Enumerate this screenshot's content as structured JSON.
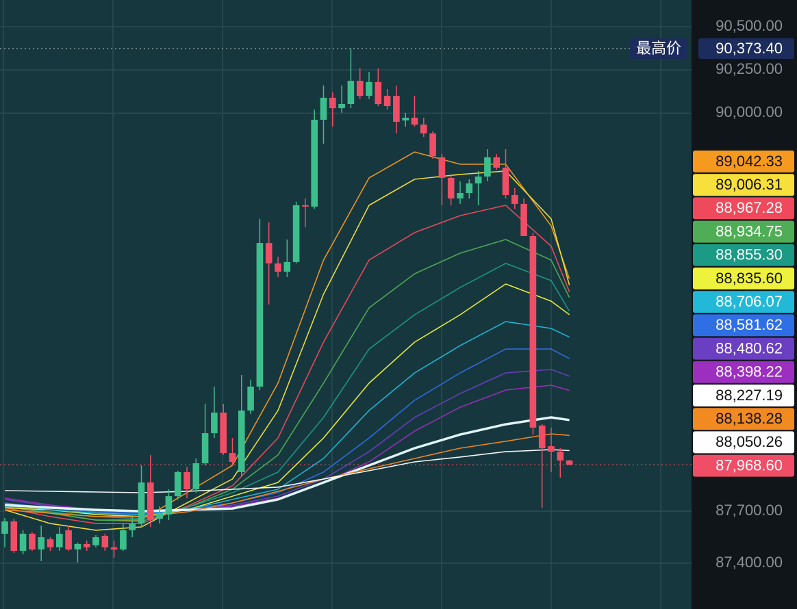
{
  "chart_data": {
    "type": "candlestick",
    "ylim": [
      87135,
      90654
    ],
    "yticks": [
      {
        "value": 90500,
        "label": "90,500.00"
      },
      {
        "value": 90250,
        "label": "90,250.00"
      },
      {
        "value": 90000,
        "label": "90,000.00"
      },
      {
        "value": 87700,
        "label": "87,700.00"
      },
      {
        "value": 87400,
        "label": "87,400.00"
      }
    ],
    "grid": true,
    "up_color": "#3cbf8c",
    "down_color": "#ef4e66",
    "candles": {
      "open": [
        87570,
        87641,
        87471,
        87570,
        87479,
        87538,
        87491,
        87590,
        87479,
        87511,
        87503,
        87558,
        87491,
        87479,
        87590,
        87629,
        87866,
        87657,
        87681,
        87787,
        87926,
        87827,
        87977,
        88151,
        88270,
        88036,
        87926,
        88282,
        88420,
        89250,
        89132,
        89084,
        89140,
        89468,
        89460,
        89962,
        90089,
        90029,
        90053,
        90187,
        90100,
        90180,
        90100,
        90100,
        89958,
        89974,
        89934,
        89883,
        89745,
        89626,
        89507,
        89539,
        89594,
        89634,
        89745,
        89685,
        89527,
        89476,
        89290,
        88195,
        88076,
        88044,
        87993
      ],
      "high": [
        87661,
        87657,
        87590,
        87578,
        87617,
        87550,
        87609,
        87617,
        87518,
        87530,
        87562,
        87570,
        87530,
        87629,
        87669,
        87965,
        88025,
        87728,
        87827,
        87934,
        87957,
        88005,
        88321,
        88420,
        88321,
        88123,
        88487,
        88460,
        89389,
        89369,
        89171,
        89270,
        89488,
        89507,
        90021,
        90160,
        90120,
        90160,
        90373.4,
        90259,
        90239,
        90259,
        90140,
        90160,
        90002,
        90100,
        89974,
        89895,
        89764,
        89646,
        89606,
        89618,
        89666,
        89792,
        89764,
        89792,
        89567,
        89507,
        89310,
        88203,
        88183,
        88064,
        87997
      ],
      "low": [
        87491,
        87459,
        87451,
        87471,
        87412,
        87471,
        87471,
        87471,
        87404,
        87471,
        87491,
        87471,
        87431,
        87471,
        87550,
        87609,
        87609,
        87629,
        87649,
        87768,
        87775,
        87807,
        87965,
        88123,
        88025,
        87973,
        87906,
        88262,
        88400,
        88894,
        89053,
        89053,
        89132,
        89341,
        89448,
        89824,
        89923,
        90002,
        90029,
        90081,
        90081,
        90041,
        90021,
        89883,
        89923,
        89923,
        89863,
        89737,
        89468,
        89468,
        89476,
        89507,
        89468,
        89606,
        89673,
        89507,
        89448,
        89290,
        88143,
        87720,
        87926,
        87894,
        87965
      ],
      "close": [
        87641,
        87471,
        87570,
        87479,
        87550,
        87491,
        87570,
        87479,
        87511,
        87491,
        87550,
        87491,
        87479,
        87590,
        87629,
        87866,
        87649,
        87689,
        87787,
        87926,
        87827,
        87977,
        88151,
        88270,
        88036,
        87985,
        88282,
        88420,
        89250,
        89132,
        89084,
        89140,
        89468,
        89460,
        89962,
        90089,
        90029,
        90053,
        90187,
        90100,
        90180,
        90053,
        90041,
        89950,
        89974,
        89934,
        89883,
        89752,
        89626,
        89507,
        89539,
        89594,
        89634,
        89745,
        89685,
        89527,
        89476,
        89290,
        88183,
        88064,
        88044,
        87993,
        87968.6
      ],
      "last_label": "87,968.60",
      "high_title": "最高价",
      "high_label": "90,373.40"
    },
    "ma_x": [
      0,
      5,
      10,
      15,
      20,
      25,
      30,
      35,
      40,
      45,
      50,
      55,
      60,
      62
    ],
    "series": [
      {
        "color": "#f59a1f",
        "values": [
          87728,
          87689,
          87649,
          87649,
          87807,
          87965,
          88440,
          89151,
          89626,
          89776,
          89705,
          89705,
          89349,
          89042.33
        ],
        "value_labels": [
          null,
          null,
          null,
          null,
          null,
          null,
          null,
          null,
          null,
          null,
          null,
          null,
          null,
          "89,042.33"
        ]
      },
      {
        "color": "#f7e03c",
        "values": [
          87708,
          87629,
          87590,
          87609,
          87748,
          87886,
          88282,
          88954,
          89468,
          89618,
          89646,
          89666,
          89389,
          89006.31
        ],
        "value_labels": [
          null,
          null,
          null,
          null,
          null,
          null,
          null,
          null,
          null,
          null,
          null,
          null,
          null,
          "89,006.31"
        ]
      },
      {
        "color": "#ef4a5c",
        "values": [
          87720,
          87669,
          87629,
          87629,
          87728,
          87847,
          88123,
          88677,
          89151,
          89310,
          89408,
          89468,
          89231,
          88967.28
        ],
        "value_labels": [
          null,
          null,
          null,
          null,
          null,
          null,
          null,
          null,
          null,
          null,
          null,
          null,
          null,
          "88,967.28"
        ]
      },
      {
        "color": "#4fae55",
        "values": [
          87736,
          87689,
          87649,
          87641,
          87720,
          87827,
          88025,
          88440,
          88875,
          89072,
          89191,
          89270,
          89151,
          88934.75
        ],
        "value_labels": [
          null,
          null,
          null,
          null,
          null,
          null,
          null,
          null,
          null,
          null,
          null,
          null,
          null,
          "88,934.75"
        ]
      },
      {
        "color": "#1b9a86",
        "values": [
          87728,
          87696,
          87669,
          87657,
          87720,
          87807,
          87926,
          88242,
          88637,
          88835,
          88993,
          89132,
          89033,
          88855.3
        ],
        "value_labels": [
          null,
          null,
          null,
          null,
          null,
          null,
          null,
          null,
          null,
          null,
          null,
          null,
          null,
          "88,855.30"
        ]
      },
      {
        "color": "#eef23c",
        "values": [
          87720,
          87708,
          87681,
          87669,
          87708,
          87787,
          87866,
          88123,
          88440,
          88677,
          88835,
          89013,
          88914,
          88835.6
        ],
        "value_labels": [
          null,
          null,
          null,
          null,
          null,
          null,
          null,
          null,
          null,
          null,
          null,
          null,
          null,
          "88,835.60"
        ]
      },
      {
        "color": "#22b9d8",
        "values": [
          87748,
          87708,
          87689,
          87681,
          87708,
          87768,
          87827,
          88005,
          88282,
          88499,
          88657,
          88796,
          88756,
          88706.07
        ],
        "value_labels": [
          null,
          null,
          null,
          null,
          null,
          null,
          null,
          null,
          null,
          null,
          null,
          null,
          null,
          "88,706.07"
        ]
      },
      {
        "color": "#2f6fe6",
        "values": [
          87748,
          87720,
          87696,
          87689,
          87708,
          87748,
          87807,
          87926,
          88123,
          88341,
          88499,
          88637,
          88637,
          88581.62
        ],
        "value_labels": [
          null,
          null,
          null,
          null,
          null,
          null,
          null,
          null,
          null,
          null,
          null,
          null,
          null,
          "88,581.62"
        ]
      },
      {
        "color": "#6a3fc2",
        "values": [
          87768,
          87728,
          87708,
          87696,
          87708,
          87736,
          87787,
          87886,
          88044,
          88242,
          88380,
          88499,
          88519,
          88480.62
        ],
        "value_labels": [
          null,
          null,
          null,
          null,
          null,
          null,
          null,
          null,
          null,
          null,
          null,
          null,
          null,
          "88,480.62"
        ]
      },
      {
        "color": "#9c2fbf",
        "values": [
          87775,
          87736,
          87708,
          87696,
          87708,
          87728,
          87775,
          87866,
          87985,
          88163,
          88301,
          88400,
          88428,
          88398.22
        ],
        "value_labels": [
          null,
          null,
          null,
          null,
          null,
          null,
          null,
          null,
          null,
          null,
          null,
          null,
          null,
          "88,398.22"
        ]
      },
      {
        "color": "#ffffff",
        "values": [
          87736,
          87720,
          87708,
          87700,
          87708,
          87716,
          87768,
          87866,
          87965,
          88064,
          88143,
          88202,
          88242,
          88227.19
        ],
        "value_labels": [
          null,
          null,
          null,
          null,
          null,
          null,
          null,
          null,
          null,
          null,
          null,
          null,
          null,
          "88,227.19"
        ]
      },
      {
        "color": "#f28a22",
        "values": [
          87708,
          87689,
          87669,
          87669,
          87696,
          87748,
          87815,
          87886,
          87945,
          88005,
          88064,
          88104,
          88147,
          88138.28
        ],
        "value_labels": [
          null,
          null,
          null,
          null,
          null,
          null,
          null,
          null,
          null,
          null,
          null,
          null,
          null,
          "88,138.28"
        ]
      },
      {
        "color": "#fefefe",
        "values": [
          87819,
          87815,
          87811,
          87807,
          87815,
          87827,
          87839,
          87886,
          87934,
          87985,
          88013,
          88044,
          88056,
          88050.26
        ],
        "value_labels": [
          null,
          null,
          null,
          null,
          null,
          null,
          null,
          null,
          null,
          null,
          null,
          null,
          null,
          "88,050.26"
        ]
      }
    ]
  }
}
